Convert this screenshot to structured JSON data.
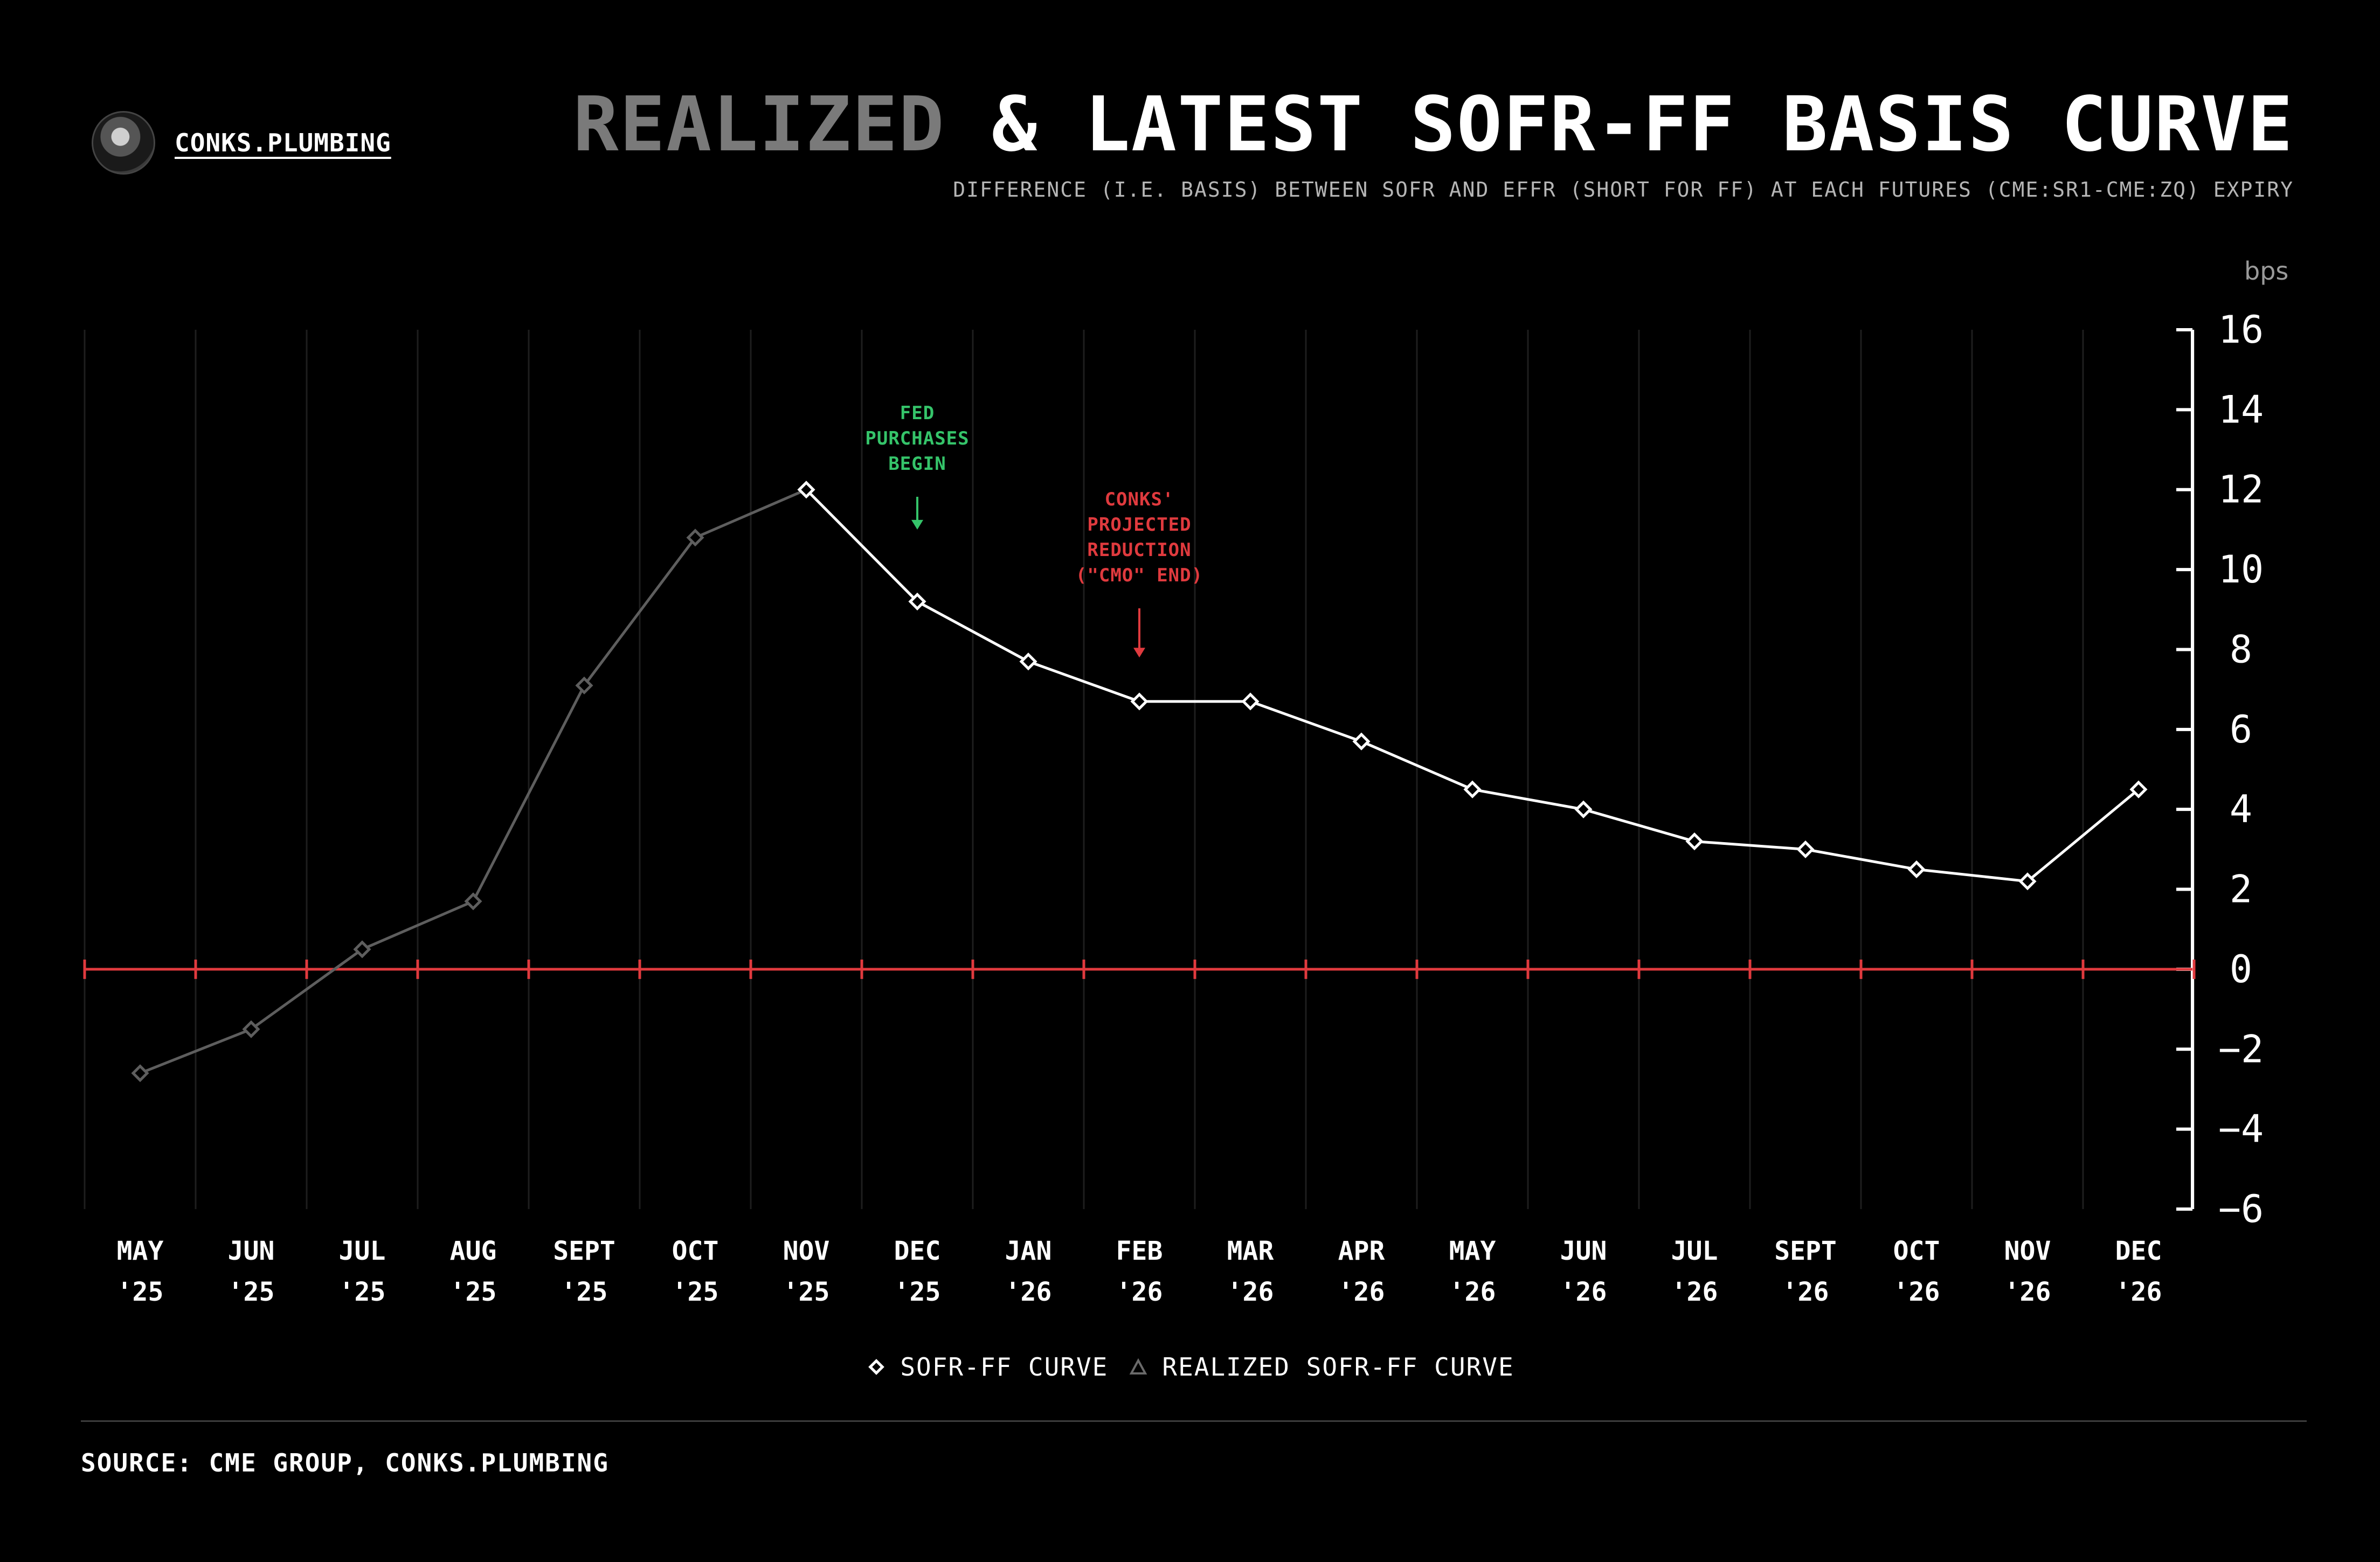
{
  "brand": {
    "name": "CONKS.PLUMBING",
    "avatar_icon": "masked-figure-avatar-icon"
  },
  "title": {
    "part_muted": "REALIZED",
    "part_main": " & LATEST SOFR-FF BASIS CURVE"
  },
  "subtitle": "DIFFERENCE (I.E. BASIS) BETWEEN SOFR AND EFFR (SHORT FOR FF) AT EACH FUTURES (CME:SR1-CME:ZQ) EXPIRY",
  "source": "SOURCE: CME GROUP, CONKS.PLUMBING",
  "colors": {
    "background": "#000000",
    "latest": "#ffffff",
    "realized": "#5e5e5e",
    "zero_line": "#e03a3e",
    "green_note": "#35c46a",
    "red_note": "#e03a3e",
    "grid": "#1e1e1e"
  },
  "chart_data": {
    "type": "line",
    "title": "REALIZED & LATEST SOFR-FF BASIS CURVE",
    "ylabel": "bps",
    "ylim": [
      -6,
      16
    ],
    "yticks": [
      16,
      14,
      12,
      10,
      8,
      6,
      4,
      2,
      0,
      -2,
      -4,
      -6
    ],
    "y_axis_side": "right",
    "zero_line": true,
    "grid": true,
    "legend_placement": "bottom-center",
    "categories": [
      {
        "month": "MAY",
        "year": "'25"
      },
      {
        "month": "JUN",
        "year": "'25"
      },
      {
        "month": "JUL",
        "year": "'25"
      },
      {
        "month": "AUG",
        "year": "'25"
      },
      {
        "month": "SEPT",
        "year": "'25"
      },
      {
        "month": "OCT",
        "year": "'25"
      },
      {
        "month": "NOV",
        "year": "'25"
      },
      {
        "month": "DEC",
        "year": "'25"
      },
      {
        "month": "JAN",
        "year": "'26"
      },
      {
        "month": "FEB",
        "year": "'26"
      },
      {
        "month": "MAR",
        "year": "'26"
      },
      {
        "month": "APR",
        "year": "'26"
      },
      {
        "month": "MAY",
        "year": "'26"
      },
      {
        "month": "JUN",
        "year": "'26"
      },
      {
        "month": "JUL",
        "year": "'26"
      },
      {
        "month": "SEPT",
        "year": "'26"
      },
      {
        "month": "OCT",
        "year": "'26"
      },
      {
        "month": "NOV",
        "year": "'26"
      },
      {
        "month": "DEC",
        "year": "'26"
      }
    ],
    "series": [
      {
        "name": "REALIZED SOFR-FF CURVE",
        "marker": "triangle",
        "color": "#5e5e5e",
        "values": [
          -2.6,
          -1.5,
          0.5,
          1.7,
          7.1,
          10.8,
          12.0,
          null,
          null,
          null,
          null,
          null,
          null,
          null,
          null,
          null,
          null,
          null,
          null
        ]
      },
      {
        "name": "SOFR-FF CURVE",
        "marker": "diamond",
        "color": "#ffffff",
        "values": [
          null,
          null,
          null,
          null,
          null,
          null,
          12.0,
          9.2,
          7.7,
          6.7,
          6.7,
          5.7,
          4.5,
          4.0,
          3.2,
          3.0,
          2.5,
          2.2,
          4.5
        ]
      }
    ],
    "annotations": [
      {
        "category_index": 7,
        "lines": [
          "FED",
          "PURCHASES",
          "BEGIN"
        ],
        "color": "#35c46a",
        "arrow_to": 11.0
      },
      {
        "category_index": 9,
        "lines": [
          "CONKS'",
          "PROJECTED",
          "REDUCTION",
          "(\"CMO\" END)"
        ],
        "color": "#e03a3e",
        "arrow_to": 7.8
      }
    ]
  }
}
